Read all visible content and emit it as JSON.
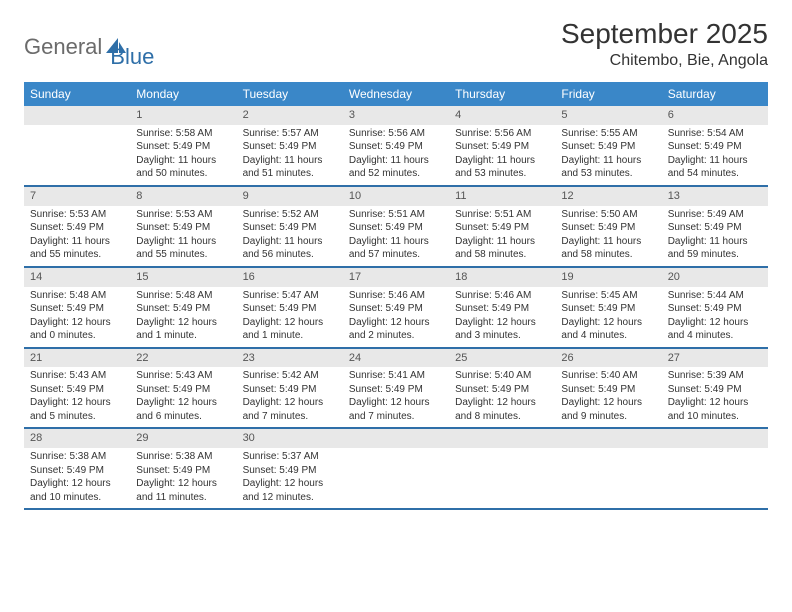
{
  "logo": {
    "word1": "General",
    "word2": "Blue"
  },
  "title": "September 2025",
  "location": "Chitembo, Bie, Angola",
  "colors": {
    "headerBg": "#3a87c8",
    "headerText": "#ffffff",
    "dayNumBg": "#e8e8e8",
    "dayNumText": "#555555",
    "borderColor": "#2f6fa8",
    "bodyText": "#333333",
    "logoGray": "#6b6b6b",
    "logoBlue": "#2f6fa8"
  },
  "weekdays": [
    "Sunday",
    "Monday",
    "Tuesday",
    "Wednesday",
    "Thursday",
    "Friday",
    "Saturday"
  ],
  "weeks": [
    [
      {
        "empty": true
      },
      {
        "num": "1",
        "sunrise": "Sunrise: 5:58 AM",
        "sunset": "Sunset: 5:49 PM",
        "daylight": "Daylight: 11 hours and 50 minutes."
      },
      {
        "num": "2",
        "sunrise": "Sunrise: 5:57 AM",
        "sunset": "Sunset: 5:49 PM",
        "daylight": "Daylight: 11 hours and 51 minutes."
      },
      {
        "num": "3",
        "sunrise": "Sunrise: 5:56 AM",
        "sunset": "Sunset: 5:49 PM",
        "daylight": "Daylight: 11 hours and 52 minutes."
      },
      {
        "num": "4",
        "sunrise": "Sunrise: 5:56 AM",
        "sunset": "Sunset: 5:49 PM",
        "daylight": "Daylight: 11 hours and 53 minutes."
      },
      {
        "num": "5",
        "sunrise": "Sunrise: 5:55 AM",
        "sunset": "Sunset: 5:49 PM",
        "daylight": "Daylight: 11 hours and 53 minutes."
      },
      {
        "num": "6",
        "sunrise": "Sunrise: 5:54 AM",
        "sunset": "Sunset: 5:49 PM",
        "daylight": "Daylight: 11 hours and 54 minutes."
      }
    ],
    [
      {
        "num": "7",
        "sunrise": "Sunrise: 5:53 AM",
        "sunset": "Sunset: 5:49 PM",
        "daylight": "Daylight: 11 hours and 55 minutes."
      },
      {
        "num": "8",
        "sunrise": "Sunrise: 5:53 AM",
        "sunset": "Sunset: 5:49 PM",
        "daylight": "Daylight: 11 hours and 55 minutes."
      },
      {
        "num": "9",
        "sunrise": "Sunrise: 5:52 AM",
        "sunset": "Sunset: 5:49 PM",
        "daylight": "Daylight: 11 hours and 56 minutes."
      },
      {
        "num": "10",
        "sunrise": "Sunrise: 5:51 AM",
        "sunset": "Sunset: 5:49 PM",
        "daylight": "Daylight: 11 hours and 57 minutes."
      },
      {
        "num": "11",
        "sunrise": "Sunrise: 5:51 AM",
        "sunset": "Sunset: 5:49 PM",
        "daylight": "Daylight: 11 hours and 58 minutes."
      },
      {
        "num": "12",
        "sunrise": "Sunrise: 5:50 AM",
        "sunset": "Sunset: 5:49 PM",
        "daylight": "Daylight: 11 hours and 58 minutes."
      },
      {
        "num": "13",
        "sunrise": "Sunrise: 5:49 AM",
        "sunset": "Sunset: 5:49 PM",
        "daylight": "Daylight: 11 hours and 59 minutes."
      }
    ],
    [
      {
        "num": "14",
        "sunrise": "Sunrise: 5:48 AM",
        "sunset": "Sunset: 5:49 PM",
        "daylight": "Daylight: 12 hours and 0 minutes."
      },
      {
        "num": "15",
        "sunrise": "Sunrise: 5:48 AM",
        "sunset": "Sunset: 5:49 PM",
        "daylight": "Daylight: 12 hours and 1 minute."
      },
      {
        "num": "16",
        "sunrise": "Sunrise: 5:47 AM",
        "sunset": "Sunset: 5:49 PM",
        "daylight": "Daylight: 12 hours and 1 minute."
      },
      {
        "num": "17",
        "sunrise": "Sunrise: 5:46 AM",
        "sunset": "Sunset: 5:49 PM",
        "daylight": "Daylight: 12 hours and 2 minutes."
      },
      {
        "num": "18",
        "sunrise": "Sunrise: 5:46 AM",
        "sunset": "Sunset: 5:49 PM",
        "daylight": "Daylight: 12 hours and 3 minutes."
      },
      {
        "num": "19",
        "sunrise": "Sunrise: 5:45 AM",
        "sunset": "Sunset: 5:49 PM",
        "daylight": "Daylight: 12 hours and 4 minutes."
      },
      {
        "num": "20",
        "sunrise": "Sunrise: 5:44 AM",
        "sunset": "Sunset: 5:49 PM",
        "daylight": "Daylight: 12 hours and 4 minutes."
      }
    ],
    [
      {
        "num": "21",
        "sunrise": "Sunrise: 5:43 AM",
        "sunset": "Sunset: 5:49 PM",
        "daylight": "Daylight: 12 hours and 5 minutes."
      },
      {
        "num": "22",
        "sunrise": "Sunrise: 5:43 AM",
        "sunset": "Sunset: 5:49 PM",
        "daylight": "Daylight: 12 hours and 6 minutes."
      },
      {
        "num": "23",
        "sunrise": "Sunrise: 5:42 AM",
        "sunset": "Sunset: 5:49 PM",
        "daylight": "Daylight: 12 hours and 7 minutes."
      },
      {
        "num": "24",
        "sunrise": "Sunrise: 5:41 AM",
        "sunset": "Sunset: 5:49 PM",
        "daylight": "Daylight: 12 hours and 7 minutes."
      },
      {
        "num": "25",
        "sunrise": "Sunrise: 5:40 AM",
        "sunset": "Sunset: 5:49 PM",
        "daylight": "Daylight: 12 hours and 8 minutes."
      },
      {
        "num": "26",
        "sunrise": "Sunrise: 5:40 AM",
        "sunset": "Sunset: 5:49 PM",
        "daylight": "Daylight: 12 hours and 9 minutes."
      },
      {
        "num": "27",
        "sunrise": "Sunrise: 5:39 AM",
        "sunset": "Sunset: 5:49 PM",
        "daylight": "Daylight: 12 hours and 10 minutes."
      }
    ],
    [
      {
        "num": "28",
        "sunrise": "Sunrise: 5:38 AM",
        "sunset": "Sunset: 5:49 PM",
        "daylight": "Daylight: 12 hours and 10 minutes."
      },
      {
        "num": "29",
        "sunrise": "Sunrise: 5:38 AM",
        "sunset": "Sunset: 5:49 PM",
        "daylight": "Daylight: 12 hours and 11 minutes."
      },
      {
        "num": "30",
        "sunrise": "Sunrise: 5:37 AM",
        "sunset": "Sunset: 5:49 PM",
        "daylight": "Daylight: 12 hours and 12 minutes."
      },
      {
        "empty": true
      },
      {
        "empty": true
      },
      {
        "empty": true
      },
      {
        "empty": true
      }
    ]
  ]
}
